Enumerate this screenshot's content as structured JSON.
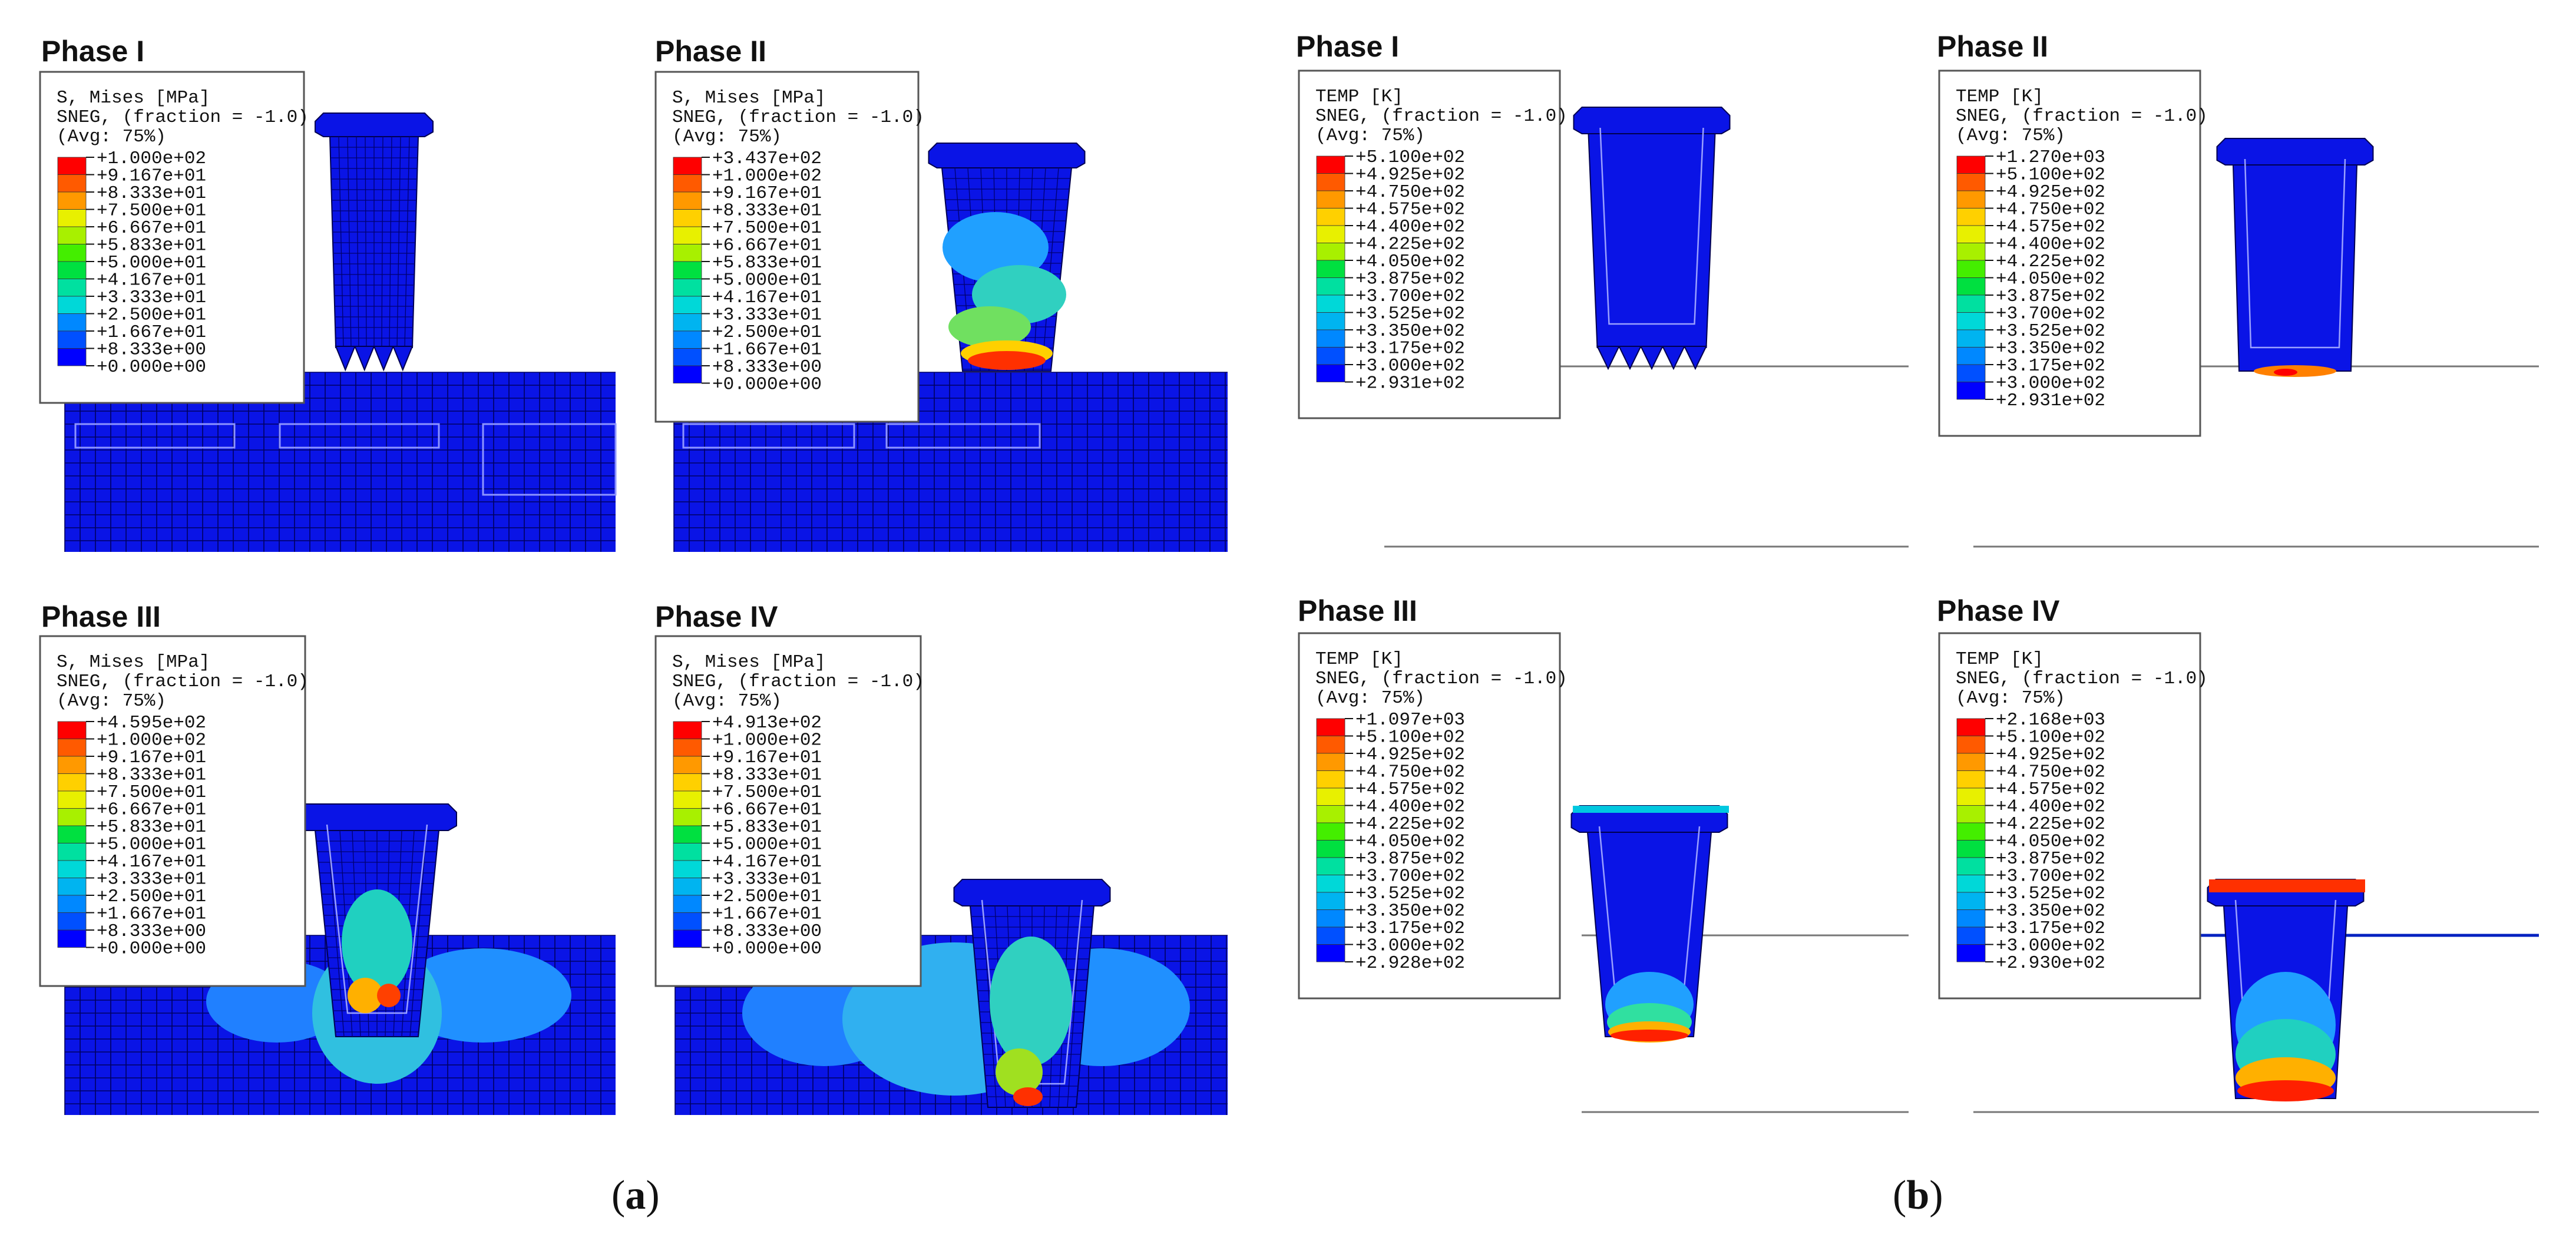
{
  "figure": {
    "panel_a_label": "a",
    "panel_b_label": "b",
    "legend_common": {
      "line2": "SNEG, (fraction = -1.0)",
      "line3": "(Avg: 75%)"
    },
    "panels": [
      {
        "id": "a1",
        "title": "Phase I",
        "variable": "S, Mises [MPa]",
        "field": "stress",
        "legend_values": [
          "+1.000e+02",
          "+9.167e+01",
          "+8.333e+01",
          "+7.500e+01",
          "+6.667e+01",
          "+5.833e+01",
          "+5.000e+01",
          "+4.167e+01",
          "+3.333e+01",
          "+2.500e+01",
          "+1.667e+01",
          "+8.333e+00",
          "+0.000e+00"
        ]
      },
      {
        "id": "a2",
        "title": "Phase II",
        "variable": "S, Mises [MPa]",
        "field": "stress",
        "legend_values": [
          "+3.437e+02",
          "+1.000e+02",
          "+9.167e+01",
          "+8.333e+01",
          "+7.500e+01",
          "+6.667e+01",
          "+5.833e+01",
          "+5.000e+01",
          "+4.167e+01",
          "+3.333e+01",
          "+2.500e+01",
          "+1.667e+01",
          "+8.333e+00",
          "+0.000e+00"
        ]
      },
      {
        "id": "a3",
        "title": "Phase III",
        "variable": "S, Mises [MPa]",
        "field": "stress",
        "legend_values": [
          "+4.595e+02",
          "+1.000e+02",
          "+9.167e+01",
          "+8.333e+01",
          "+7.500e+01",
          "+6.667e+01",
          "+5.833e+01",
          "+5.000e+01",
          "+4.167e+01",
          "+3.333e+01",
          "+2.500e+01",
          "+1.667e+01",
          "+8.333e+00",
          "+0.000e+00"
        ]
      },
      {
        "id": "a4",
        "title": "Phase IV",
        "variable": "S, Mises [MPa]",
        "field": "stress",
        "legend_values": [
          "+4.913e+02",
          "+1.000e+02",
          "+9.167e+01",
          "+8.333e+01",
          "+7.500e+01",
          "+6.667e+01",
          "+5.833e+01",
          "+5.000e+01",
          "+4.167e+01",
          "+3.333e+01",
          "+2.500e+01",
          "+1.667e+01",
          "+8.333e+00",
          "+0.000e+00"
        ]
      },
      {
        "id": "b1",
        "title": "Phase I",
        "variable": "TEMP [K]",
        "field": "temp",
        "legend_values": [
          "+5.100e+02",
          "+4.925e+02",
          "+4.750e+02",
          "+4.575e+02",
          "+4.400e+02",
          "+4.225e+02",
          "+4.050e+02",
          "+3.875e+02",
          "+3.700e+02",
          "+3.525e+02",
          "+3.350e+02",
          "+3.175e+02",
          "+3.000e+02",
          "+2.931e+02"
        ]
      },
      {
        "id": "b2",
        "title": "Phase II",
        "variable": "TEMP [K]",
        "field": "temp",
        "legend_values": [
          "+1.270e+03",
          "+5.100e+02",
          "+4.925e+02",
          "+4.750e+02",
          "+4.575e+02",
          "+4.400e+02",
          "+4.225e+02",
          "+4.050e+02",
          "+3.875e+02",
          "+3.700e+02",
          "+3.525e+02",
          "+3.350e+02",
          "+3.175e+02",
          "+3.000e+02",
          "+2.931e+02"
        ]
      },
      {
        "id": "b3",
        "title": "Phase III",
        "variable": "TEMP [K]",
        "field": "temp",
        "legend_values": [
          "+1.097e+03",
          "+5.100e+02",
          "+4.925e+02",
          "+4.750e+02",
          "+4.575e+02",
          "+4.400e+02",
          "+4.225e+02",
          "+4.050e+02",
          "+3.875e+02",
          "+3.700e+02",
          "+3.525e+02",
          "+3.350e+02",
          "+3.175e+02",
          "+3.000e+02",
          "+2.928e+02"
        ]
      },
      {
        "id": "b4",
        "title": "Phase IV",
        "variable": "TEMP [K]",
        "field": "temp",
        "legend_values": [
          "+2.168e+03",
          "+5.100e+02",
          "+4.925e+02",
          "+4.750e+02",
          "+4.575e+02",
          "+4.400e+02",
          "+4.225e+02",
          "+4.050e+02",
          "+3.875e+02",
          "+3.700e+02",
          "+3.525e+02",
          "+3.350e+02",
          "+3.175e+02",
          "+3.000e+02",
          "+2.930e+02"
        ]
      }
    ],
    "colorscale": [
      "#ff0000",
      "#ff5a00",
      "#ff9900",
      "#ffd000",
      "#e8f000",
      "#a8f000",
      "#44ee00",
      "#00e040",
      "#00e0a0",
      "#00d8d8",
      "#00b4f0",
      "#0088ff",
      "#0050ff",
      "#0000ff"
    ]
  }
}
